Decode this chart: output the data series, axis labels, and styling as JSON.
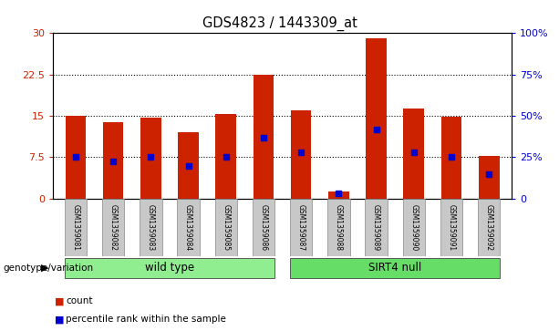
{
  "title": "GDS4823 / 1443309_at",
  "samples": [
    "GSM1359081",
    "GSM1359082",
    "GSM1359083",
    "GSM1359084",
    "GSM1359085",
    "GSM1359086",
    "GSM1359087",
    "GSM1359088",
    "GSM1359089",
    "GSM1359090",
    "GSM1359091",
    "GSM1359092"
  ],
  "counts": [
    15.0,
    13.8,
    14.7,
    12.0,
    15.3,
    22.5,
    16.0,
    1.3,
    29.0,
    16.3,
    14.8,
    7.8
  ],
  "percentile_ranks": [
    25.0,
    22.5,
    25.0,
    20.0,
    25.0,
    37.0,
    28.0,
    3.0,
    42.0,
    28.0,
    25.0,
    15.0
  ],
  "bar_color": "#CC2200",
  "marker_color": "#0000CC",
  "ylim_left": [
    0,
    30
  ],
  "ylim_right": [
    0,
    100
  ],
  "yticks_left": [
    0,
    7.5,
    15,
    22.5,
    30
  ],
  "yticks_right": [
    0,
    25,
    50,
    75,
    100
  ],
  "ytick_labels_left": [
    "0",
    "7.5",
    "15",
    "22.5",
    "30"
  ],
  "ytick_labels_right": [
    "0",
    "25%",
    "50%",
    "75%",
    "100%"
  ],
  "bar_width": 0.55,
  "grid_yticks": [
    7.5,
    15,
    22.5
  ],
  "background_color": "#ffffff",
  "group_wt_color": "#90EE90",
  "group_null_color": "#66DD66",
  "label_bg_color": "#C8C8C8"
}
